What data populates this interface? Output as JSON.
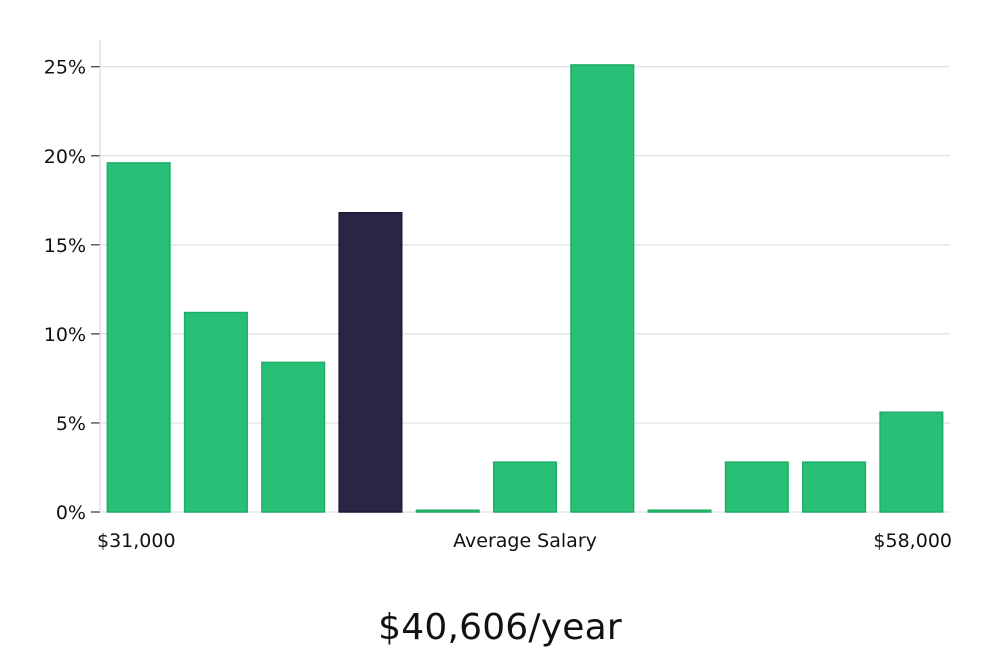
{
  "chart_data": {
    "type": "bar",
    "title": "",
    "xlabel": "Average Salary",
    "x_start_label": "$31,000",
    "x_end_label": "$58,000",
    "ylabel": "",
    "ylim": [
      0,
      26.5
    ],
    "yticks": [
      0,
      5,
      10,
      15,
      20,
      25
    ],
    "ytick_labels": [
      "0%",
      "5%",
      "10%",
      "15%",
      "20%",
      "25%"
    ],
    "grid": true,
    "highlight_index": 3,
    "values": [
      19.6,
      11.2,
      8.4,
      16.8,
      0.1,
      2.8,
      25.1,
      0.1,
      2.8,
      2.8,
      5.6
    ]
  },
  "colors": {
    "bar": "#28bf76",
    "bar_edge": "#20ad68",
    "highlight": "#292645",
    "grid": "#d9d9d9",
    "axis": "#cfcfcf"
  },
  "summary": {
    "salary_text": "$40,606/year"
  }
}
